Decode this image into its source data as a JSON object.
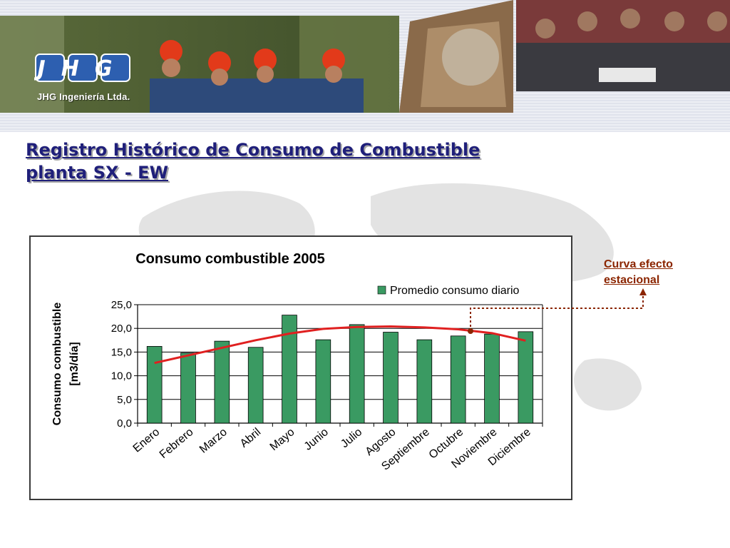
{
  "header": {
    "brand_caption": "JHG Ingeniería Ltda.",
    "logo_text": "JHG"
  },
  "slide": {
    "title_line1": "Registro Histórico de Consumo de Combustible",
    "title_line2": "planta SX - EW"
  },
  "annotation": {
    "line1": "Curva efecto",
    "line2": "estacional",
    "color": "#8b2500"
  },
  "chart_data": {
    "type": "bar",
    "title": "Consumo combustible 2005",
    "ylabel_line1": "Consumo combustible",
    "ylabel_line2": "[m3/día]",
    "xlabel": "",
    "ylim": [
      0,
      25
    ],
    "yticks": [
      "0,0",
      "5,0",
      "10,0",
      "15,0",
      "20,0",
      "25,0"
    ],
    "grid": true,
    "legend_position": "top-right",
    "categories": [
      "Enero",
      "Febrero",
      "Marzo",
      "Abril",
      "Mayo",
      "Junio",
      "Julio",
      "Agosto",
      "Septiembre",
      "Octubre",
      "Noviembre",
      "Diciembre"
    ],
    "series": [
      {
        "name": "Promedio consumo diario",
        "type": "bar",
        "color": "#3a9a62",
        "values": [
          16.2,
          14.8,
          17.3,
          16.0,
          22.8,
          17.6,
          20.8,
          19.2,
          17.6,
          18.4,
          18.8,
          19.3
        ]
      },
      {
        "type": "line",
        "color": "#e02020",
        "values": [
          12.7,
          14.3,
          15.9,
          17.5,
          18.9,
          19.9,
          20.3,
          20.4,
          20.2,
          19.8,
          19.0,
          17.4
        ]
      }
    ]
  }
}
